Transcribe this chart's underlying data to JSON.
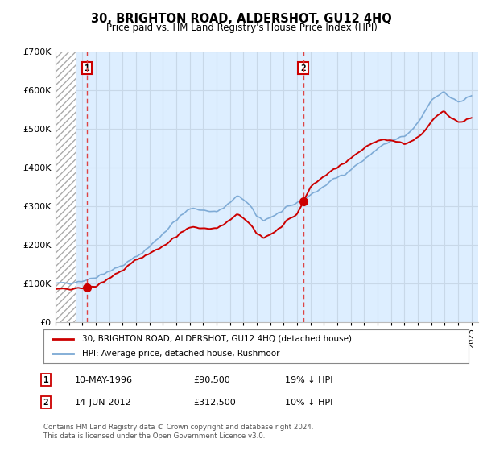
{
  "title": "30, BRIGHTON ROAD, ALDERSHOT, GU12 4HQ",
  "subtitle": "Price paid vs. HM Land Registry's House Price Index (HPI)",
  "legend_label_red": "30, BRIGHTON ROAD, ALDERSHOT, GU12 4HQ (detached house)",
  "legend_label_blue": "HPI: Average price, detached house, Rushmoor",
  "purchase1_date_num": 1996.36,
  "purchase1_price": 90500,
  "purchase1_label": "1",
  "purchase2_date_num": 2012.45,
  "purchase2_price": 312500,
  "purchase2_label": "2",
  "table_row1": [
    "1",
    "10-MAY-1996",
    "£90,500",
    "19% ↓ HPI"
  ],
  "table_row2": [
    "2",
    "14-JUN-2012",
    "£312,500",
    "10% ↓ HPI"
  ],
  "footnote": "Contains HM Land Registry data © Crown copyright and database right 2024.\nThis data is licensed under the Open Government Licence v3.0.",
  "ylim": [
    0,
    700000
  ],
  "xlim_start": 1994.0,
  "xlim_end": 2025.5,
  "hatch_end": 1995.5,
  "red_color": "#cc0000",
  "blue_color": "#7aa8d4",
  "hatch_color": "#aaaaaa",
  "bg_color": "#ddeeff",
  "grid_color": "#c8d8e8",
  "dashed_line_color": "#dd4444",
  "hpi_years": [
    1994.0,
    1994.5,
    1995.0,
    1995.5,
    1996.0,
    1996.5,
    1997.0,
    1997.5,
    1998.0,
    1998.5,
    1999.0,
    1999.5,
    2000.0,
    2000.5,
    2001.0,
    2001.5,
    2002.0,
    2002.5,
    2003.0,
    2003.5,
    2004.0,
    2004.5,
    2005.0,
    2005.5,
    2006.0,
    2006.5,
    2007.0,
    2007.5,
    2008.0,
    2008.5,
    2009.0,
    2009.5,
    2010.0,
    2010.5,
    2011.0,
    2011.5,
    2012.0,
    2012.5,
    2013.0,
    2013.5,
    2014.0,
    2014.5,
    2015.0,
    2015.5,
    2016.0,
    2016.5,
    2017.0,
    2017.5,
    2018.0,
    2018.5,
    2019.0,
    2019.5,
    2020.0,
    2020.5,
    2021.0,
    2021.5,
    2022.0,
    2022.5,
    2023.0,
    2023.5,
    2024.0,
    2024.5,
    2025.0
  ],
  "hpi_prices": [
    100000,
    101000,
    103000,
    105000,
    108000,
    112000,
    118000,
    126000,
    133000,
    140000,
    148000,
    158000,
    170000,
    182000,
    196000,
    213000,
    230000,
    248000,
    265000,
    280000,
    293000,
    295000,
    291000,
    287000,
    288000,
    295000,
    310000,
    325000,
    320000,
    300000,
    275000,
    265000,
    272000,
    280000,
    290000,
    300000,
    310000,
    320000,
    330000,
    340000,
    352000,
    365000,
    375000,
    385000,
    395000,
    410000,
    420000,
    435000,
    450000,
    460000,
    468000,
    475000,
    480000,
    495000,
    515000,
    545000,
    575000,
    590000,
    595000,
    580000,
    570000,
    575000,
    585000
  ],
  "red_years": [
    1994.0,
    1994.5,
    1995.0,
    1995.5,
    1996.0,
    1996.36,
    1997.0,
    1997.5,
    1998.0,
    1998.5,
    1999.0,
    1999.5,
    2000.0,
    2000.5,
    2001.0,
    2001.5,
    2002.0,
    2002.5,
    2003.0,
    2003.5,
    2004.0,
    2004.5,
    2005.0,
    2005.5,
    2006.0,
    2006.5,
    2007.0,
    2007.5,
    2008.0,
    2008.5,
    2009.0,
    2009.5,
    2010.0,
    2010.5,
    2011.0,
    2011.5,
    2012.0,
    2012.45,
    2013.0,
    2013.5,
    2014.0,
    2014.5,
    2015.0,
    2015.5,
    2016.0,
    2016.5,
    2017.0,
    2017.5,
    2018.0,
    2018.5,
    2019.0,
    2019.5,
    2020.0,
    2020.5,
    2021.0,
    2021.5,
    2022.0,
    2022.5,
    2023.0,
    2023.5,
    2024.0,
    2024.5,
    2025.0
  ],
  "red_prices": [
    85000,
    86000,
    88000,
    90000,
    90000,
    90500,
    95000,
    105000,
    115000,
    125000,
    135000,
    148000,
    162000,
    170000,
    178000,
    188000,
    198000,
    210000,
    222000,
    235000,
    245000,
    247000,
    244000,
    242000,
    245000,
    252000,
    265000,
    278000,
    272000,
    252000,
    230000,
    220000,
    228000,
    238000,
    252000,
    268000,
    280000,
    312500,
    350000,
    365000,
    378000,
    390000,
    400000,
    415000,
    425000,
    438000,
    450000,
    462000,
    470000,
    472000,
    470000,
    466000,
    460000,
    468000,
    478000,
    495000,
    520000,
    540000,
    545000,
    528000,
    518000,
    520000,
    528000
  ]
}
